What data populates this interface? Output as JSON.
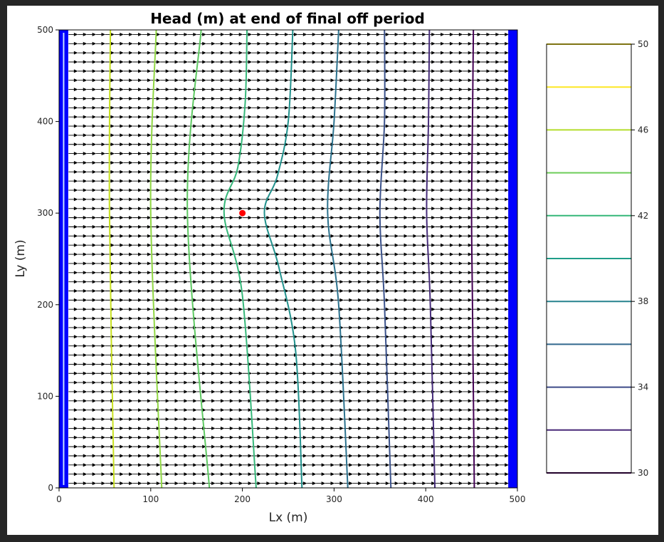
{
  "chart_data": {
    "type": "contour",
    "title": "Head (m) at end of final off period",
    "xlabel": "Lx (m)",
    "ylabel": "Ly (m)",
    "xlim": [
      0,
      500
    ],
    "ylim": [
      0,
      500
    ],
    "x_ticks": [
      0,
      100,
      200,
      300,
      400,
      500
    ],
    "y_ticks": [
      0,
      100,
      200,
      300,
      400,
      500
    ],
    "constant_head_boundaries": {
      "color": "#0000ff",
      "x_ranges": [
        [
          0,
          10
        ],
        [
          490,
          500
        ]
      ]
    },
    "well": {
      "x": 200,
      "y": 300,
      "color": "#ff0000"
    },
    "flow_vectors": {
      "direction": "+x",
      "color": "#000000",
      "x_start": 15,
      "x_end": 485,
      "x_step": 10,
      "y_start": 5,
      "y_end": 495,
      "y_step": 10
    },
    "contour_levels": [
      48,
      46,
      44,
      42,
      40,
      38,
      36,
      34,
      32
    ],
    "contour_colors": [
      "#c8e020",
      "#90d743",
      "#5ec962",
      "#35b779",
      "#21918c",
      "#2c728e",
      "#3b528b",
      "#472d7b",
      "#440154"
    ],
    "contours": [
      {
        "level": 48,
        "points": [
          [
            56,
            500
          ],
          [
            55,
            300
          ],
          [
            60,
            0
          ]
        ]
      },
      {
        "level": 46,
        "points": [
          [
            106,
            500
          ],
          [
            100,
            300
          ],
          [
            112,
            0
          ]
        ]
      },
      {
        "level": 44,
        "points": [
          [
            155,
            500
          ],
          [
            140,
            300
          ],
          [
            164,
            0
          ]
        ]
      },
      {
        "level": 42,
        "points": [
          [
            205,
            500
          ],
          [
            203,
            420
          ],
          [
            195,
            350
          ],
          [
            180,
            300
          ],
          [
            200,
            210
          ],
          [
            215,
            0
          ]
        ]
      },
      {
        "level": 40,
        "points": [
          [
            255,
            500
          ],
          [
            250,
            400
          ],
          [
            238,
            340
          ],
          [
            224,
            300
          ],
          [
            240,
            240
          ],
          [
            258,
            150
          ],
          [
            265,
            0
          ]
        ]
      },
      {
        "level": 38,
        "points": [
          [
            305,
            500
          ],
          [
            300,
            400
          ],
          [
            293,
            300
          ],
          [
            305,
            200
          ],
          [
            315,
            0
          ]
        ]
      },
      {
        "level": 36,
        "points": [
          [
            355,
            500
          ],
          [
            355,
            400
          ],
          [
            350,
            300
          ],
          [
            355,
            200
          ],
          [
            362,
            0
          ]
        ]
      },
      {
        "level": 34,
        "points": [
          [
            404,
            500
          ],
          [
            403,
            400
          ],
          [
            401,
            300
          ],
          [
            405,
            200
          ],
          [
            410,
            0
          ]
        ]
      },
      {
        "level": 32,
        "points": [
          [
            452,
            500
          ],
          [
            451,
            400
          ],
          [
            450,
            300
          ],
          [
            451,
            200
          ],
          [
            453,
            0
          ]
        ]
      }
    ],
    "colorbar": {
      "levels": [
        30,
        32,
        34,
        36,
        38,
        40,
        42,
        44,
        46,
        48,
        50
      ],
      "colors": [
        "#440154",
        "#482878",
        "#3e4a89",
        "#31688e",
        "#26828e",
        "#1f9e89",
        "#35b779",
        "#6dcd59",
        "#b4de2c",
        "#fde725",
        "#fde725"
      ],
      "tick_labels": [
        "30",
        "34",
        "38",
        "42",
        "46",
        "50"
      ],
      "tick_values": [
        30,
        34,
        38,
        42,
        46,
        50
      ]
    }
  }
}
